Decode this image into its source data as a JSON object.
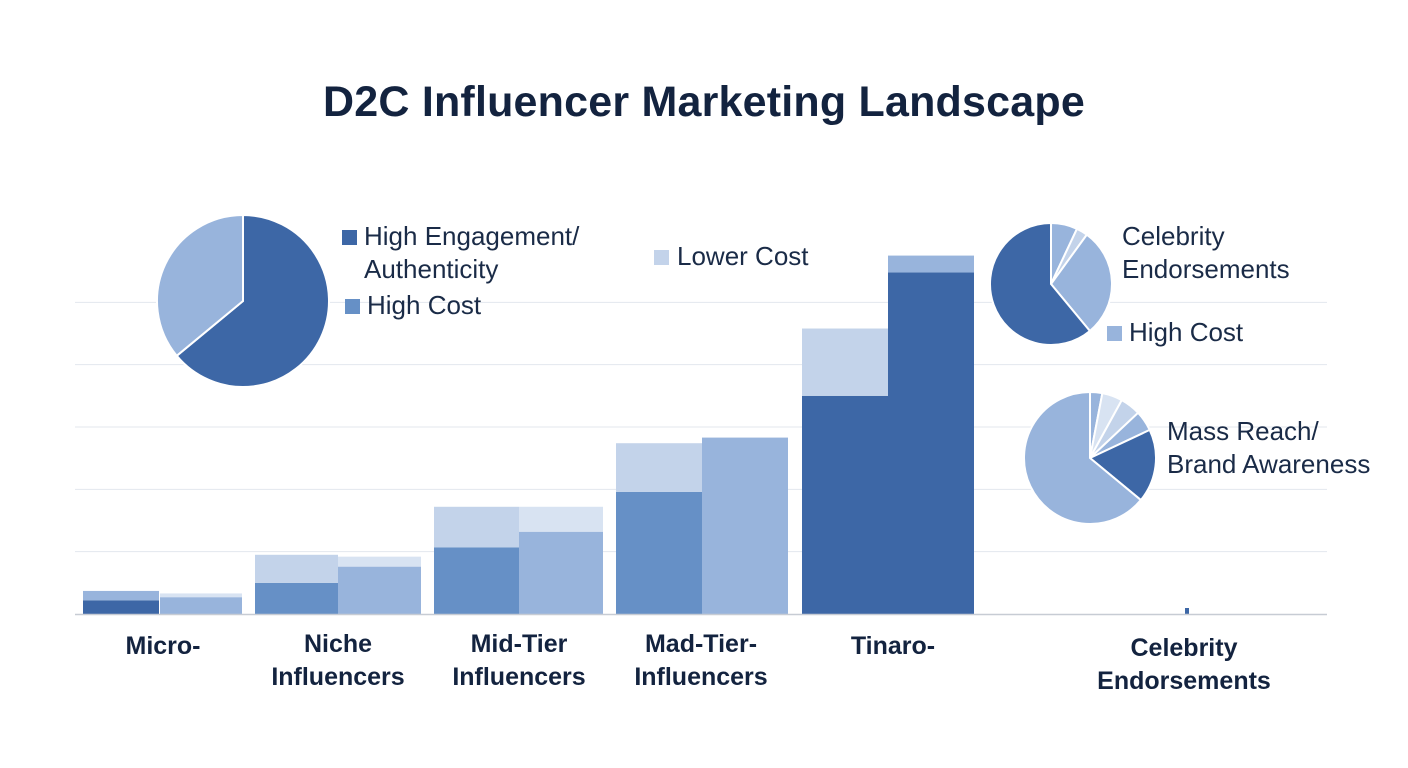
{
  "title": "D2C Influencer Marketing Landscape",
  "colors": {
    "dark": "#3d67a6",
    "mid": "#6690c6",
    "light": "#98b4dc",
    "pale": "#c3d3ea",
    "paler": "#d8e3f2",
    "grid": "#e3e7ee",
    "axis": "#c7ccd4"
  },
  "chart_data": {
    "type": "bar",
    "categories": [
      "Micro-",
      "Niche\nInfluencers",
      "Mid-Tier\nInfluencers",
      "Mad-Tier-\nInfluencers",
      "Tinaro-",
      "Celebrity Endorsements"
    ],
    "ylim": [
      0,
      6
    ],
    "grid": true,
    "stacks": [
      {
        "category": 0,
        "bars": [
          {
            "base": 0.22,
            "top": 0.37
          },
          {
            "base": 0.27,
            "top": 0.33
          }
        ]
      },
      {
        "category": 1,
        "bars": [
          {
            "base": 0.5,
            "top": 0.95
          },
          {
            "base": 0.76,
            "top": 0.92
          }
        ]
      },
      {
        "category": 2,
        "bars": [
          {
            "base": 1.07,
            "top": 1.72
          },
          {
            "base": 1.32,
            "top": 1.72
          }
        ]
      },
      {
        "category": 3,
        "bars": [
          {
            "base": 1.96,
            "top": 2.74
          },
          {
            "base": 2.83,
            "top": 2.83
          }
        ]
      },
      {
        "category": 4,
        "bars": [
          {
            "base": 3.5,
            "top": 4.58
          },
          {
            "base": 5.48,
            "top": 5.75
          }
        ]
      },
      {
        "category": 5,
        "bars": [
          {
            "base": 0.08,
            "top": 0.08
          }
        ]
      }
    ],
    "pies": [
      {
        "id": "pie-engagement",
        "slices": [
          {
            "value": 64,
            "color": "dark"
          },
          {
            "value": 36,
            "color": "light"
          }
        ]
      },
      {
        "id": "pie-celebrity",
        "slices": [
          {
            "value": 7,
            "color": "light"
          },
          {
            "value": 3,
            "color": "pale"
          },
          {
            "value": 29,
            "color": "light"
          },
          {
            "value": 61,
            "color": "dark"
          }
        ]
      },
      {
        "id": "pie-reach",
        "slices": [
          {
            "value": 3,
            "color": "light"
          },
          {
            "value": 5,
            "color": "paler"
          },
          {
            "value": 5,
            "color": "pale"
          },
          {
            "value": 5,
            "color": "light"
          },
          {
            "value": 18,
            "color": "dark"
          },
          {
            "value": 64,
            "color": "light"
          }
        ]
      }
    ]
  },
  "legends": [
    {
      "id": "high-engagement",
      "text": "High Engagement/\nAuthenticity",
      "color": "dark"
    },
    {
      "id": "high-cost-1",
      "text": "High Cost",
      "color": "mid"
    },
    {
      "id": "lower-cost",
      "text": "Lower Cost",
      "color": "pale"
    },
    {
      "id": "celebrity",
      "text": "Celebrity\nEndorsements",
      "color": ""
    },
    {
      "id": "high-cost-2",
      "text": "High Cost",
      "color": "light"
    },
    {
      "id": "mass-reach",
      "text": "Mass Reach/\nBrand Awareness",
      "color": ""
    }
  ]
}
